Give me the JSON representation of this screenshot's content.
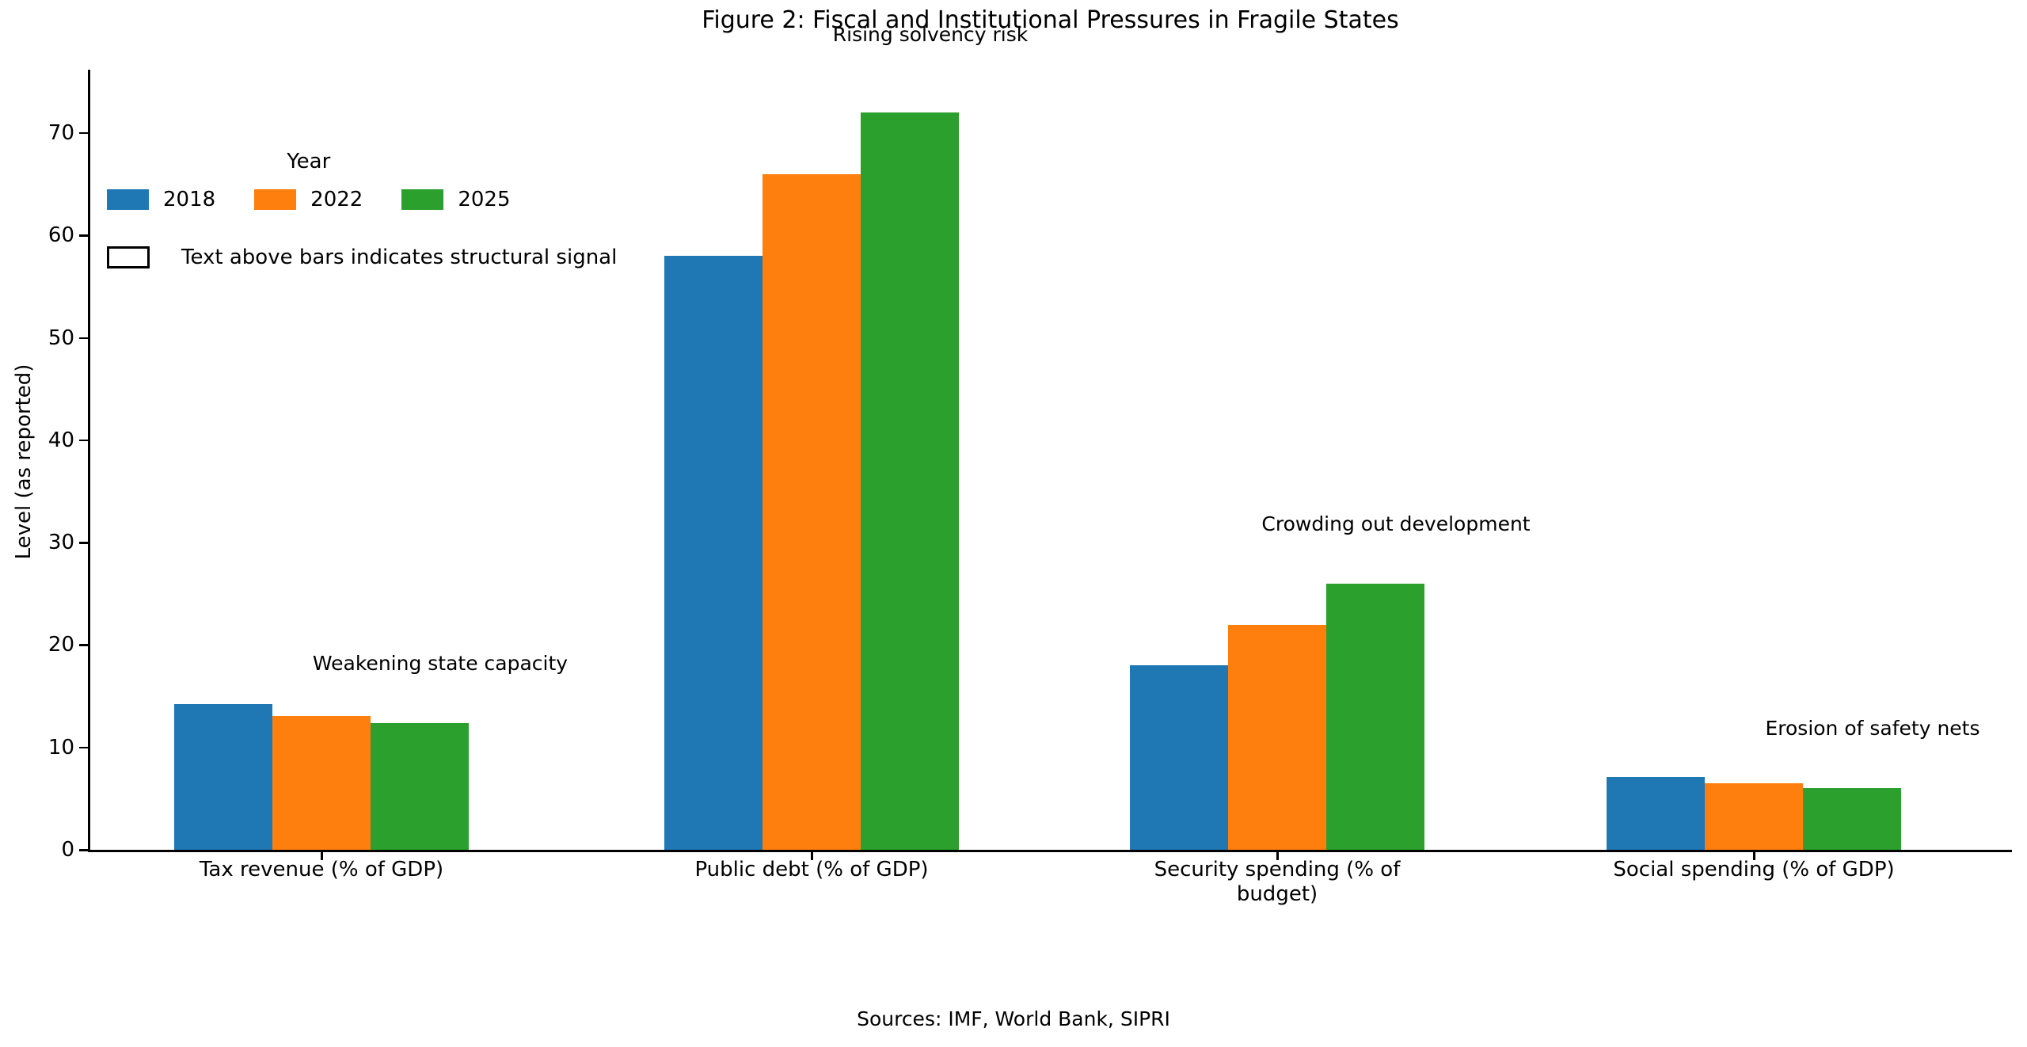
{
  "chart_data": {
    "type": "bar",
    "title": "Figure 2: Fiscal and Institutional Pressures in Fragile States",
    "ylabel": "Level (as reported)",
    "xlabel": "",
    "ylim": [
      0,
      76
    ],
    "yticks": [
      0,
      10,
      20,
      30,
      40,
      50,
      60,
      70
    ],
    "grid": false,
    "background": "#ffffff",
    "axis_color": "#000000",
    "legend": {
      "title": "Year",
      "position": "upper-left-inside"
    },
    "categories": [
      "Tax revenue (% of GDP)",
      "Public debt (% of GDP)",
      "Security spending (% of budget)",
      "Social spending (% of GDP)"
    ],
    "category_label_lines": [
      [
        "Tax revenue (% of GDP)"
      ],
      [
        "Public debt (% of GDP)"
      ],
      [
        "Security spending (% of",
        "budget)"
      ],
      [
        "Social spending (% of GDP)"
      ]
    ],
    "series": [
      {
        "name": "2018",
        "color": "#1f77b4",
        "values": [
          14.2,
          58,
          18,
          7.1
        ]
      },
      {
        "name": "2022",
        "color": "#ff7f0e",
        "values": [
          13.1,
          66,
          22,
          6.5
        ]
      },
      {
        "name": "2025",
        "color": "#2ca02c",
        "values": [
          12.4,
          72,
          26,
          6.0
        ]
      }
    ],
    "bar_annotations": [
      "Weakening state capacity",
      "Rising solvency risk",
      "Crowding out development",
      "Erosion of safety nets"
    ],
    "note_legend": "Text above bars indicates structural signal",
    "footer": "Sources: IMF, World Bank, SIPRI"
  }
}
